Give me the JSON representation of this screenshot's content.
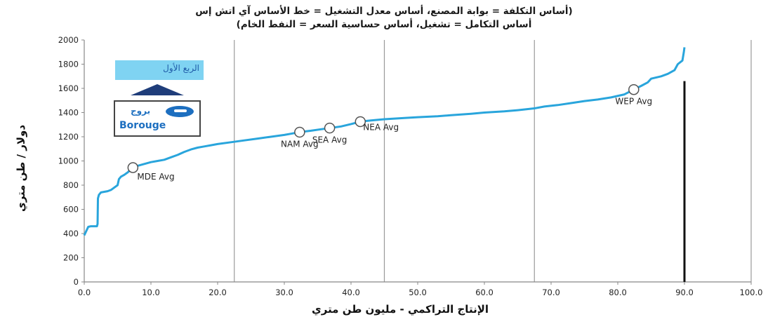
{
  "header": {
    "title_line1": "(أساس التكلفة = بوابة المصنع، أساس معدل التشغيل = خط الأساس آي اتش إس",
    "title_line2": "أساس التكامل = تشغيل، أساس حساسية السعر = النفط الخام)"
  },
  "callout": {
    "quarter_label": "الربع الأول",
    "logo_arabic": "بروج",
    "logo_english": "Borouge"
  },
  "colors": {
    "curve": "#29a5dc",
    "marker_fill": "#ffffff",
    "marker_stroke": "#555555",
    "grid_line": "#9a9a9a",
    "highlight_bar": "#111111",
    "quarter_box": "#7fd3f2",
    "arrow": "#1f3d7a",
    "logo": "#1d6fc0"
  },
  "chart_data": {
    "type": "line",
    "title": "",
    "xlabel": "الإنتاج التراكمي - مليون طن متري",
    "ylabel": "دولار / طن متري",
    "xlim": [
      0,
      100
    ],
    "ylim": [
      0,
      2000
    ],
    "x_ticks": [
      "0.0",
      "10.0",
      "20.0",
      "30.0",
      "40.0",
      "50.0",
      "60.0",
      "70.0",
      "80.0",
      "90.0",
      "100.0"
    ],
    "y_ticks": [
      "0",
      "200",
      "400",
      "600",
      "800",
      "1000",
      "1200",
      "1400",
      "1600",
      "1800",
      "2000"
    ],
    "vertical_gridlines_x": [
      22.5,
      45.0,
      67.5,
      100.0
    ],
    "highlight_bar": {
      "x": 90.0,
      "y_top": 1660
    },
    "series": [
      {
        "points": [
          [
            0.0,
            385
          ],
          [
            0.3,
            420
          ],
          [
            0.6,
            455
          ],
          [
            1.0,
            460
          ],
          [
            1.5,
            460
          ],
          [
            1.9,
            460
          ],
          [
            2.0,
            480
          ],
          [
            2.05,
            690
          ],
          [
            2.2,
            720
          ],
          [
            2.5,
            740
          ],
          [
            3.0,
            745
          ],
          [
            3.5,
            750
          ],
          [
            4.0,
            760
          ],
          [
            4.5,
            780
          ],
          [
            5.0,
            800
          ],
          [
            5.2,
            850
          ],
          [
            5.5,
            870
          ],
          [
            6.0,
            885
          ],
          [
            6.5,
            905
          ],
          [
            7.0,
            930
          ],
          [
            7.3,
            945
          ],
          [
            8.0,
            960
          ],
          [
            9.0,
            975
          ],
          [
            10.0,
            990
          ],
          [
            11.0,
            1000
          ],
          [
            12.0,
            1010
          ],
          [
            13.0,
            1030
          ],
          [
            14.0,
            1050
          ],
          [
            15.0,
            1075
          ],
          [
            16.0,
            1095
          ],
          [
            17.0,
            1110
          ],
          [
            18.0,
            1120
          ],
          [
            19.0,
            1130
          ],
          [
            20.0,
            1140
          ],
          [
            22.0,
            1155
          ],
          [
            24.0,
            1170
          ],
          [
            26.0,
            1185
          ],
          [
            28.0,
            1200
          ],
          [
            30.0,
            1215
          ],
          [
            31.0,
            1225
          ],
          [
            32.3,
            1238
          ],
          [
            34.0,
            1250
          ],
          [
            35.5,
            1262
          ],
          [
            36.8,
            1272
          ],
          [
            38.5,
            1285
          ],
          [
            40.0,
            1305
          ],
          [
            41.4,
            1325
          ],
          [
            43.0,
            1335
          ],
          [
            45.0,
            1345
          ],
          [
            48.0,
            1355
          ],
          [
            50.0,
            1362
          ],
          [
            53.0,
            1370
          ],
          [
            55.0,
            1378
          ],
          [
            58.0,
            1390
          ],
          [
            60.0,
            1400
          ],
          [
            63.0,
            1410
          ],
          [
            65.0,
            1420
          ],
          [
            67.5,
            1435
          ],
          [
            69.0,
            1450
          ],
          [
            71.0,
            1462
          ],
          [
            73.0,
            1478
          ],
          [
            75.0,
            1495
          ],
          [
            77.0,
            1508
          ],
          [
            79.0,
            1525
          ],
          [
            81.0,
            1550
          ],
          [
            82.4,
            1590
          ],
          [
            83.5,
            1620
          ],
          [
            84.5,
            1650
          ],
          [
            85.0,
            1680
          ],
          [
            86.5,
            1700
          ],
          [
            87.5,
            1720
          ],
          [
            88.5,
            1750
          ],
          [
            89.0,
            1800
          ],
          [
            89.7,
            1830
          ],
          [
            89.9,
            1900
          ],
          [
            90.0,
            1940
          ]
        ]
      }
    ],
    "annotations": [
      {
        "label": "MDE Avg",
        "x": 7.3,
        "y": 945,
        "label_side": "below-right"
      },
      {
        "label": "NAM Avg",
        "x": 32.3,
        "y": 1238,
        "label_side": "below"
      },
      {
        "label": "SEA Avg",
        "x": 36.8,
        "y": 1272,
        "label_side": "below"
      },
      {
        "label": "NEA Avg",
        "x": 41.4,
        "y": 1325,
        "label_side": "right"
      },
      {
        "label": "WEP Avg",
        "x": 82.4,
        "y": 1590,
        "label_side": "below"
      }
    ],
    "grid": "vertical-only",
    "legend": "none"
  }
}
